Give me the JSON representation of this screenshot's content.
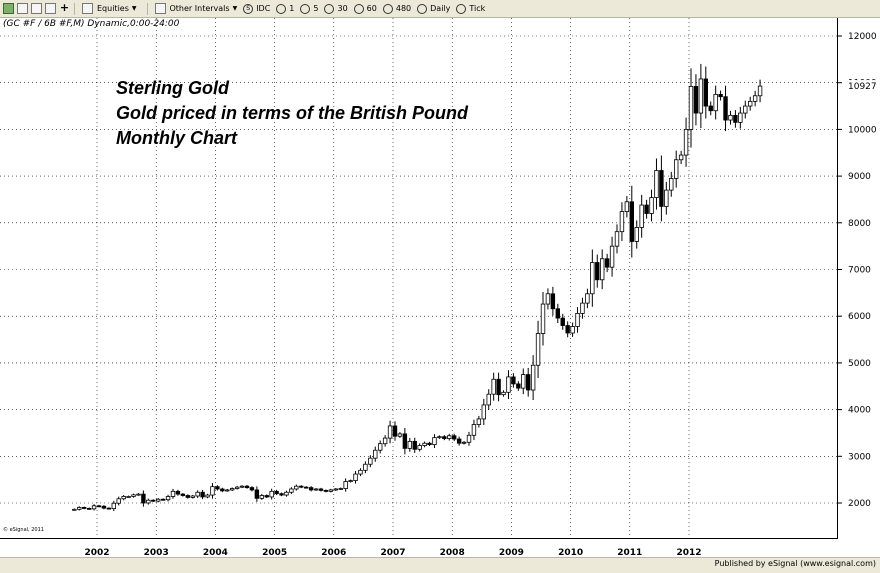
{
  "toolbar": {
    "items": [
      {
        "label": "Equities",
        "dropdown": true
      },
      {
        "label": "Other Intervals",
        "dropdown": true
      },
      {
        "label": "IDC",
        "icon": "circle-s-icon"
      },
      {
        "label": "1",
        "icon": "clock-icon"
      },
      {
        "label": "5",
        "icon": "clock-icon"
      },
      {
        "label": "30",
        "icon": "clock-icon"
      },
      {
        "label": "60",
        "icon": "clock-icon"
      },
      {
        "label": "480",
        "icon": "clock-icon"
      },
      {
        "label": "Daily",
        "icon": "clock-icon"
      },
      {
        "label": "Tick",
        "icon": "clock-icon"
      }
    ]
  },
  "symbol_line": "(GC #F / 6B #F,M) Dynamic,0:00-24:00",
  "credit_small": "© eSignal, 2011",
  "footer": {
    "published": "Published by eSignal (www.esignal.com)"
  },
  "colors": {
    "up": "#ffffff",
    "down": "#000000",
    "outline": "#000000",
    "axis": "#000000"
  },
  "chart_data": {
    "type": "candlestick",
    "title_lines": [
      "Sterling Gold",
      "Gold priced in terms of the British Pound",
      "Monthly Chart"
    ],
    "interval": "monthly",
    "start": "2001-08",
    "last_value": 10927,
    "last_value_label": "10927",
    "ylim": [
      1500,
      12250
    ],
    "y_ticks": [
      2000,
      3000,
      4000,
      5000,
      6000,
      7000,
      8000,
      9000,
      10000,
      11000,
      12000
    ],
    "x_ticks": [
      "2002",
      "2003",
      "2004",
      "2005",
      "2006",
      "2007",
      "2008",
      "2009",
      "2010",
      "2011",
      "2012"
    ],
    "close_values": [
      1865,
      1905,
      1885,
      1875,
      1940,
      1930,
      1890,
      1880,
      1995,
      2090,
      2140,
      2140,
      2175,
      2190,
      2000,
      2060,
      2040,
      2080,
      2070,
      2140,
      2250,
      2190,
      2160,
      2120,
      2150,
      2230,
      2130,
      2170,
      2350,
      2300,
      2260,
      2280,
      2310,
      2340,
      2360,
      2330,
      2280,
      2100,
      2160,
      2130,
      2250,
      2200,
      2170,
      2230,
      2300,
      2360,
      2340,
      2330,
      2280,
      2300,
      2270,
      2250,
      2280,
      2300,
      2310,
      2460,
      2480,
      2620,
      2700,
      2830,
      2960,
      3130,
      3270,
      3390,
      3650,
      3430,
      3480,
      3170,
      3320,
      3150,
      3230,
      3280,
      3250,
      3400,
      3420,
      3380,
      3440,
      3370,
      3280,
      3300,
      3450,
      3680,
      3800,
      4100,
      4330,
      4650,
      4320,
      4370,
      4700,
      4550,
      4460,
      4750,
      4420,
      4950,
      5630,
      6260,
      6480,
      6160,
      5960,
      5800,
      5640,
      5780,
      6060,
      6280,
      6480,
      7150,
      6780,
      7230,
      7050,
      7500,
      7810,
      8240,
      8450,
      7600,
      7900,
      8380,
      8200,
      8540,
      9120,
      8350,
      8700,
      8950,
      9350,
      9450,
      10000,
      10920,
      10350,
      11080,
      10500,
      10400,
      10750,
      10700,
      10200,
      10300,
      10150,
      10350,
      10500,
      10600,
      10720,
      10927
    ]
  }
}
